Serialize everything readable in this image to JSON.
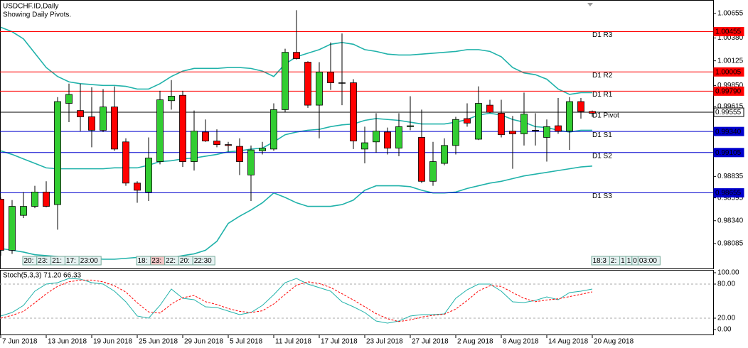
{
  "chart_data": [
    {
      "type": "candlestick",
      "title": "USDCHF.ID,Daily",
      "subtitle": "Showing Daily Pivots.",
      "categories": [
        "7 Jun 2018",
        null,
        null,
        null,
        "13 Jun 2018",
        null,
        null,
        null,
        "19 Jun 2018",
        null,
        null,
        null,
        "25 Jun 2018",
        null,
        null,
        null,
        "29 Jun 2018",
        null,
        null,
        null,
        "5 Jul 2018",
        null,
        null,
        null,
        "11 Jul 2018",
        null,
        null,
        null,
        "17 Jul 2018",
        null,
        null,
        null,
        "23 Jul 2018",
        null,
        null,
        null,
        "27 Jul 2018",
        null,
        null,
        null,
        "2 Aug 2018",
        null,
        null,
        null,
        "8 Aug 2018",
        null,
        null,
        null,
        "14 Aug 2018",
        null,
        null,
        null,
        "20 Aug 2018"
      ],
      "open": [
        0.9858,
        0.9801,
        0.984,
        0.985,
        0.9866,
        0.9852,
        0.9965,
        0.9957,
        0.995,
        0.9935,
        0.9961,
        0.9922,
        0.9876,
        0.9866,
        0.99,
        0.9968,
        0.9974,
        0.99,
        0.9933,
        0.9923,
        0.9919,
        0.9917,
        0.9885,
        0.9912,
        0.9914,
        0.9958,
        1.0022,
        1.0011,
        0.9963,
        1.0,
        0.9988,
        0.9988,
        0.9914,
        0.9922,
        0.9933,
        0.9915,
        0.9939,
        0.9927,
        0.9878,
        0.9898,
        0.9918,
        0.9948,
        0.9925,
        0.9963,
        0.9954,
        0.9934,
        0.9931,
        0.9935,
        0.9927,
        0.994,
        0.9934,
        0.9967,
        0.9956
      ],
      "high": [
        0.986,
        0.9857,
        0.9866,
        0.9873,
        0.9878,
        0.9972,
        0.9987,
        0.9987,
        0.9983,
        0.9981,
        0.9984,
        0.9926,
        0.9878,
        0.9927,
        0.9979,
        0.9991,
        0.9979,
        0.9957,
        0.9947,
        0.9936,
        0.9922,
        0.9926,
        0.9918,
        0.9922,
        0.9965,
        1.0026,
        1.0069,
        1.0012,
        1.0011,
        1.0033,
        1.0043,
        0.9992,
        0.9939,
        0.9954,
        0.9938,
        0.9954,
        0.9973,
        0.9958,
        0.9922,
        0.9926,
        0.995,
        0.9965,
        0.9984,
        0.9969,
        0.9969,
        0.9951,
        0.9977,
        0.9954,
        0.9947,
        0.9971,
        0.9972,
        0.9971,
        0.9957
      ],
      "low": [
        0.9795,
        0.9797,
        0.9837,
        0.9848,
        0.9849,
        0.9824,
        0.9944,
        0.9934,
        0.9916,
        0.9933,
        0.9912,
        0.9873,
        0.9854,
        0.9856,
        0.9897,
        0.9958,
        0.9894,
        0.989,
        0.9922,
        0.9916,
        0.9911,
        0.9885,
        0.9856,
        0.9908,
        0.9912,
        0.9955,
        1.0014,
        0.996,
        0.9926,
        0.998,
        0.9963,
        0.9914,
        0.9898,
        0.991,
        0.9908,
        0.9906,
        0.9935,
        0.9876,
        0.9873,
        0.9896,
        0.9908,
        0.9939,
        0.9924,
        0.9954,
        0.9927,
        0.9892,
        0.9918,
        0.9918,
        0.99,
        0.9931,
        0.9913,
        0.9948,
        0.995
      ],
      "close": [
        0.9801,
        0.985,
        0.985,
        0.9866,
        0.985,
        0.9967,
        0.9975,
        0.995,
        0.9935,
        0.9961,
        0.9914,
        0.9876,
        0.9868,
        0.9904,
        0.9969,
        0.9973,
        0.99,
        0.9934,
        0.9923,
        0.9919,
        0.9918,
        0.99,
        0.9913,
        0.9915,
        0.9958,
        1.0022,
        1.0015,
        0.9963,
        1.0,
        0.9988,
        0.9988,
        0.9923,
        0.9921,
        0.9934,
        0.9915,
        0.9939,
        0.994,
        0.9878,
        0.99,
        0.9918,
        0.9947,
        0.9943,
        0.9965,
        0.9955,
        0.993,
        0.9931,
        0.9953,
        0.9935,
        0.9939,
        0.9934,
        0.9967,
        0.9956,
        0.9954
      ],
      "up_color": "#32cd32",
      "down_color": "#ff0000",
      "bands": [
        {
          "color": "#20b2aa",
          "values": [
            1.005,
            1.0045,
            1.0037,
            1.0021,
            1.0005,
            0.9995,
            0.9989,
            0.9987,
            0.9986,
            0.9985,
            0.9985,
            0.9984,
            0.9981,
            0.9981,
            0.9987,
            0.9995,
            1.0001,
            1.0004,
            1.0004,
            1.0004,
            1.0005,
            1.0005,
            1.0004,
            1.0001,
            0.9995,
            1.0009,
            1.0017,
            1.0021,
            1.0025,
            1.0031,
            1.0033,
            1.0031,
            1.0025,
            1.0023,
            1.002,
            1.0019,
            1.0019,
            1.002,
            1.0021,
            1.0022,
            1.0023,
            1.0025,
            1.0025,
            1.0023,
            1.0017,
            1.0005,
            0.9999,
            0.9997,
            0.9992,
            0.9981,
            0.9975,
            0.9977,
            0.9977
          ]
        },
        {
          "color": "#20b2aa",
          "values": [
            0.9912,
            0.9908,
            0.9903,
            0.9898,
            0.9893,
            0.9892,
            0.9892,
            0.9892,
            0.9892,
            0.9892,
            0.9893,
            0.9893,
            0.9893,
            0.9896,
            0.99,
            0.9901,
            0.9903,
            0.9904,
            0.9906,
            0.9908,
            0.9911,
            0.9912,
            0.9914,
            0.9915,
            0.9922,
            0.993,
            0.9933,
            0.9935,
            0.9936,
            0.9939,
            0.9941,
            0.9942,
            0.9946,
            0.9948,
            0.9947,
            0.9946,
            0.9944,
            0.9942,
            0.9942,
            0.9942,
            0.9944,
            0.9947,
            0.9952,
            0.9954,
            0.9952,
            0.9947,
            0.9944,
            0.9939,
            0.9938,
            0.9935,
            0.9933,
            0.9935,
            0.9935
          ]
        },
        {
          "color": "#20b2aa",
          "values": [
            0.9803,
            0.9801,
            0.9799,
            0.9796,
            0.9795,
            0.9794,
            0.9793,
            0.9793,
            0.9792,
            0.9791,
            0.9791,
            0.9792,
            0.9793,
            0.9793,
            0.9793,
            0.9793,
            0.9795,
            0.9797,
            0.9801,
            0.9811,
            0.9831,
            0.9839,
            0.9846,
            0.9854,
            0.9865,
            0.986,
            0.9854,
            0.985,
            0.985,
            0.985,
            0.9852,
            0.9857,
            0.9868,
            0.9873,
            0.9873,
            0.9873,
            0.9872,
            0.9868,
            0.9865,
            0.9865,
            0.9866,
            0.987,
            0.9873,
            0.9876,
            0.9878,
            0.9881,
            0.9884,
            0.9886,
            0.9888,
            0.989,
            0.9892,
            0.9894,
            0.9895
          ]
        }
      ],
      "pivots": [
        {
          "name": "D1 R3",
          "value": 1.00455,
          "color": "#ff0000"
        },
        {
          "name": "D1 R2",
          "value": 1.00005,
          "color": "#ff0000"
        },
        {
          "name": "D1 R1",
          "value": 0.9979,
          "label": "0.99790",
          "color": "#ff0000"
        },
        {
          "name": "D1 Pivot",
          "value": 0.99555,
          "color": "#000000"
        },
        {
          "name": "D1 S1",
          "value": 0.9934,
          "label": "0.99340",
          "color": "#0000cd"
        },
        {
          "name": "D1 S2",
          "value": 0.99105,
          "color": "#0000cd"
        },
        {
          "name": "D1 S3",
          "value": 0.98655,
          "color": "#0000cd"
        }
      ],
      "session_labels": [
        [
          "20:",
          "23:",
          "21:",
          "17:",
          "23:00"
        ],
        [
          "18:",
          "23:",
          "22:",
          "20:",
          "22:30"
        ],
        [
          "18:3",
          "2:",
          "1",
          "1",
          "0",
          "03:00"
        ]
      ],
      "ylim": [
        0.97807,
        1.00804
      ],
      "yticks": [
        1.00655,
        {
          "value": 1.0038,
          "label": "1.00380"
        },
        1.00125,
        {
          "value": 0.9985,
          "label": "0.99850"
        },
        0.99615,
        0.98835,
        0.98595,
        {
          "value": 0.9834,
          "label": "0.98340"
        },
        0.98085
      ]
    },
    {
      "type": "line",
      "title": "Stoch(5,3,3) 71.20 66.33",
      "series": [
        {
          "color": "#20b2aa",
          "values": [
            23.8,
            30,
            42.5,
            67.5,
            80,
            82.5,
            90,
            88.8,
            82.5,
            80,
            67.5,
            48.8,
            23.8,
            20,
            42.5,
            71.3,
            55,
            52.5,
            40,
            38.8,
            32.5,
            26.3,
            30,
            42.5,
            61.3,
            82.5,
            90,
            80,
            73.8,
            67.5,
            48.8,
            40,
            30,
            15,
            11.3,
            15,
            23.8,
            26.3,
            26.3,
            27.5,
            55,
            70,
            80,
            80,
            67.5,
            48.8,
            47.5,
            51.3,
            57.5,
            52.5,
            65,
            67.5,
            71.2
          ]
        },
        {
          "color": "#ff0000",
          "dashed": true,
          "values": [
            20,
            25,
            32,
            47,
            63,
            76,
            84,
            87,
            87,
            84,
            77,
            66,
            47,
            31,
            29,
            45,
            56,
            60,
            49,
            44,
            37,
            32,
            30,
            33,
            45,
            62,
            78,
            84,
            81,
            74,
            63,
            52,
            40,
            28,
            19,
            14,
            17,
            22,
            25,
            27,
            36,
            51,
            68,
            77,
            76,
            65,
            55,
            49,
            52,
            54,
            58,
            62,
            66.33
          ]
        }
      ],
      "ylim": [
        0,
        100
      ],
      "yticks": [
        {
          "value": 100,
          "label": "100.00"
        },
        {
          "value": 80,
          "label": "80.00"
        },
        {
          "value": 20,
          "label": "20.00"
        },
        {
          "value": 0,
          "label": "0.00"
        }
      ]
    }
  ]
}
